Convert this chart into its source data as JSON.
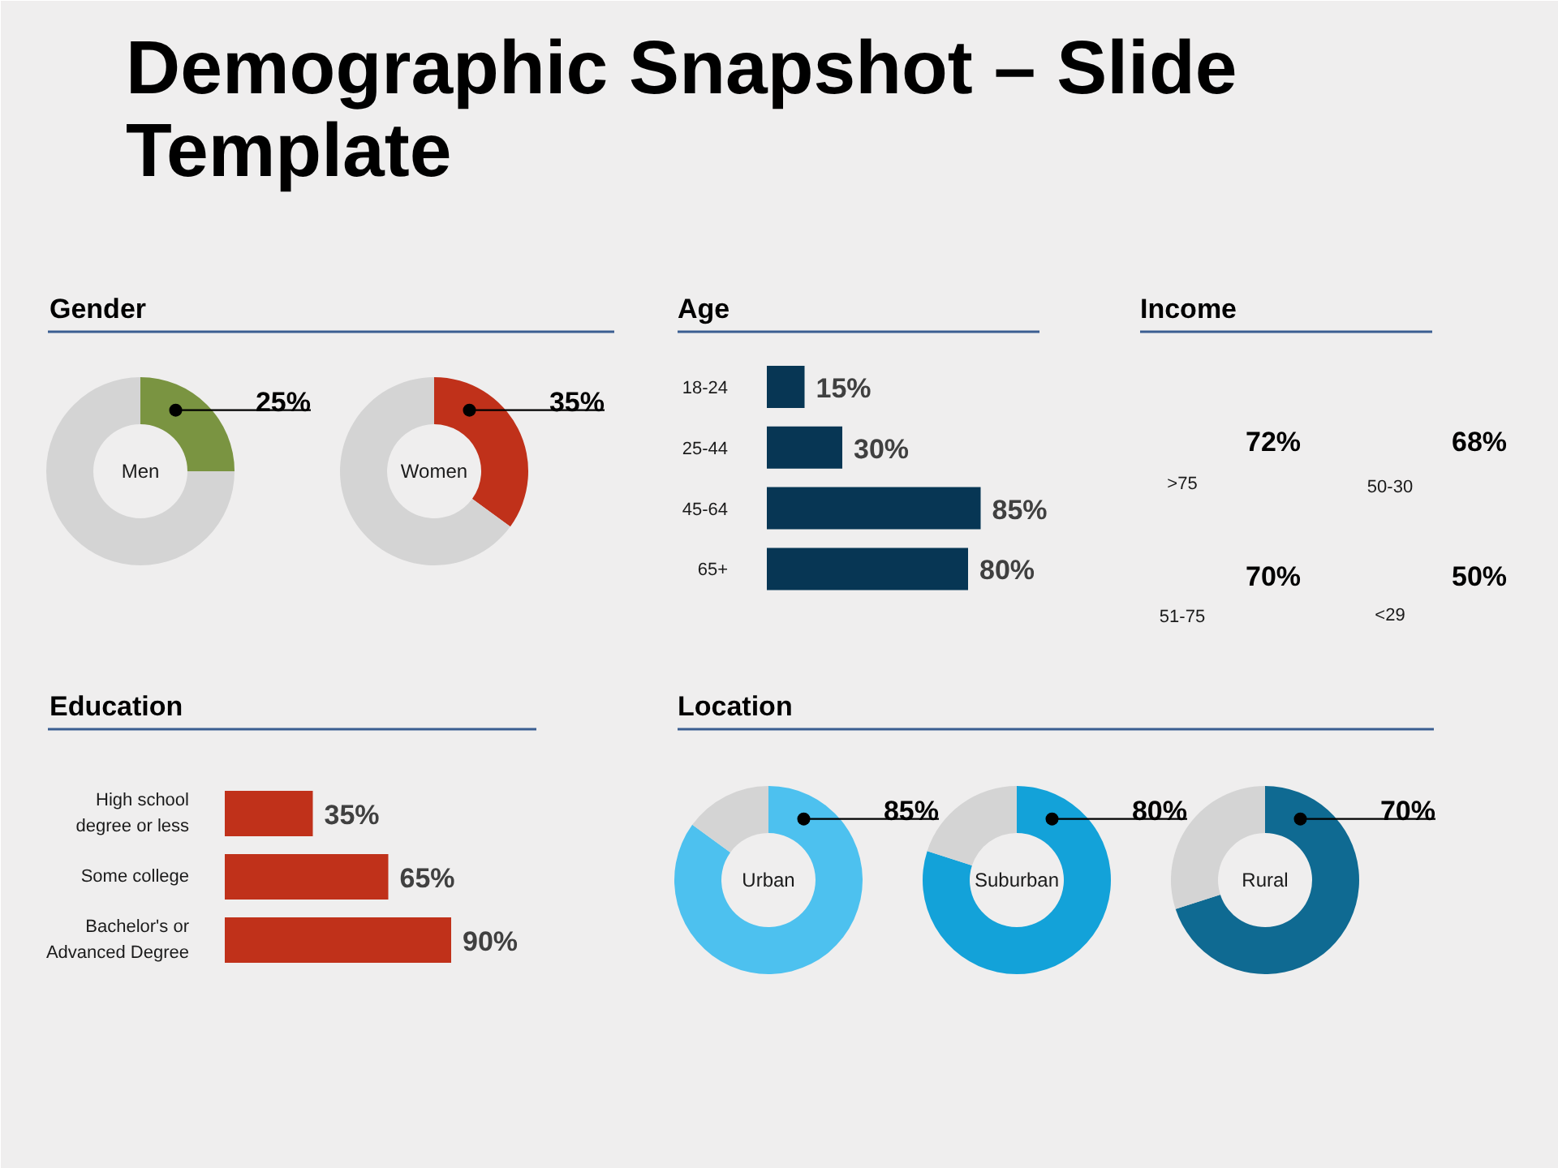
{
  "chart_data": [
    {
      "type": "other",
      "title": "Demographic Snapshot – Slide Template"
    },
    {
      "type": "donut",
      "title": "Gender",
      "categories": [
        "Men",
        null
      ],
      "values": [
        25,
        75
      ],
      "colors": [
        "#7a9441",
        "#d4d4d4"
      ],
      "value_labels": [
        "25%",
        null
      ]
    },
    {
      "type": "donut",
      "categories": [
        "Women",
        null
      ],
      "values": [
        35,
        65
      ],
      "colors": [
        "#c0311a",
        "#d4d4d4"
      ],
      "value_labels": [
        "35%",
        null
      ]
    },
    {
      "type": "bar",
      "title": "Age",
      "orientation": "horizontal",
      "categories": [
        "18-24",
        "25-44",
        "45-64",
        "65+"
      ],
      "values": [
        15,
        30,
        85,
        80
      ],
      "color": "#073654",
      "value_labels": [
        "15%",
        "30%",
        "85%",
        "80%"
      ]
    },
    {
      "type": "other",
      "title": "Income",
      "categories": [
        ">75",
        "50-30",
        "51-75",
        "<29"
      ],
      "values": [
        72,
        68,
        70,
        50
      ],
      "value_labels": [
        "72%",
        "68%",
        "70%",
        "50%"
      ]
    },
    {
      "type": "bar",
      "title": "Education",
      "orientation": "horizontal",
      "categories": [
        "High school degree or less",
        "Some college",
        "Bachelor's or Advanced Degree"
      ],
      "values": [
        35,
        65,
        90
      ],
      "color": "#c0311a",
      "value_labels": [
        "35%",
        "65%",
        "90%"
      ]
    },
    {
      "type": "donut",
      "title": "Location",
      "categories": [
        "Urban",
        null
      ],
      "values": [
        85,
        15
      ],
      "colors": [
        "#4dc1ef",
        "#d4d4d4"
      ],
      "value_labels": [
        "85%",
        null
      ]
    },
    {
      "type": "donut",
      "categories": [
        "Suburban",
        null
      ],
      "values": [
        80,
        20
      ],
      "colors": [
        "#13a2d9",
        "#d4d4d4"
      ],
      "value_labels": [
        "80%",
        null
      ]
    },
    {
      "type": "donut",
      "categories": [
        "Rural",
        null
      ],
      "values": [
        70,
        30
      ],
      "colors": [
        "#0f6a92",
        "#d4d4d4"
      ],
      "value_labels": [
        "70%",
        null
      ]
    }
  ]
}
